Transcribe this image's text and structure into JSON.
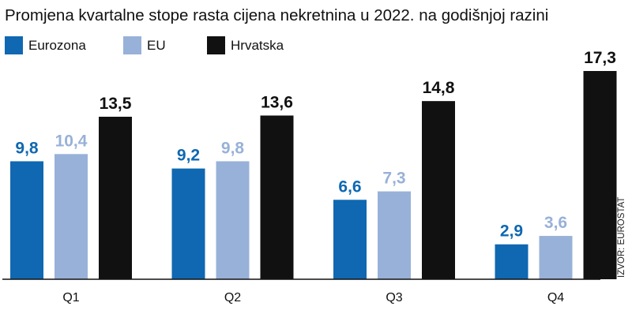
{
  "chart_data": {
    "type": "bar",
    "title": "Promjena kvartalne stope rasta cijena nekretnina u 2022. na godišnjoj razini",
    "categories": [
      "Q1",
      "Q2",
      "Q3",
      "Q4"
    ],
    "series": [
      {
        "name": "Eurozona",
        "color": "#0f68b1",
        "values": [
          9.8,
          9.2,
          6.6,
          2.9
        ],
        "labels": [
          "9,8",
          "9,2",
          "6,6",
          "2,9"
        ]
      },
      {
        "name": "EU",
        "color": "#98b1d8",
        "values": [
          10.4,
          9.8,
          7.3,
          3.6
        ],
        "labels": [
          "10,4",
          "9,8",
          "7,3",
          "3,6"
        ]
      },
      {
        "name": "Hrvatska",
        "color": "#111111",
        "values": [
          13.5,
          13.6,
          14.8,
          17.3
        ],
        "labels": [
          "13,5",
          "13,6",
          "14,8",
          "17,3"
        ]
      }
    ],
    "xlabel": "",
    "ylabel": "",
    "ylim": [
      0,
      17.3
    ],
    "legend": "top-left",
    "grid": false
  },
  "source": "IZVOR: EUROSTAT"
}
